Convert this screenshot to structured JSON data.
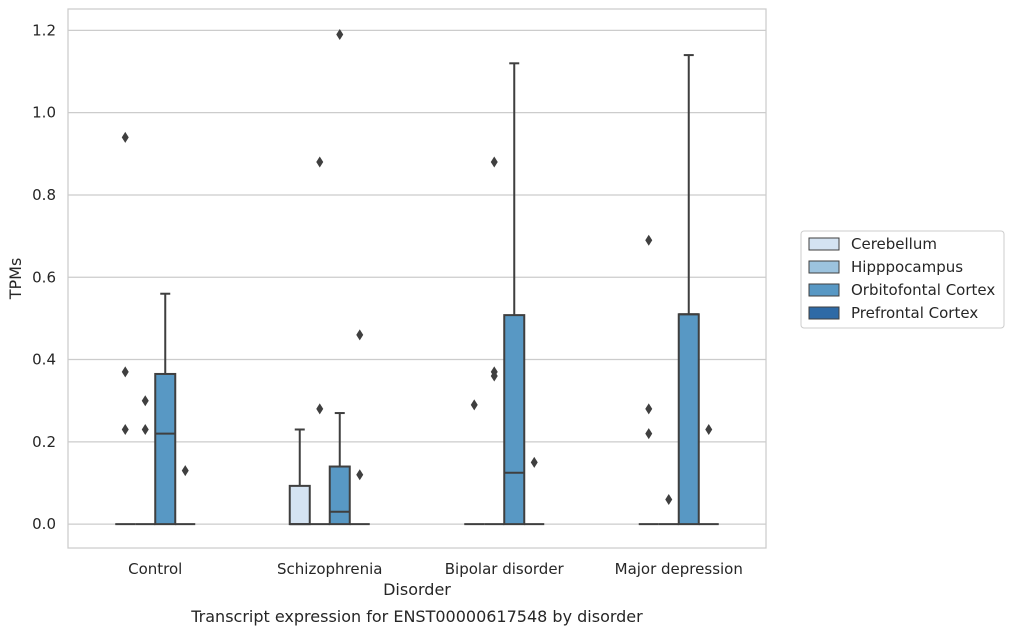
{
  "chart_data": {
    "type": "box",
    "caption": "Transcript expression for ENST00000617548 by disorder",
    "xlabel": "Disorder",
    "ylabel": "TPMs",
    "ylim": [
      -0.058,
      1.252
    ],
    "yticks": [
      0.0,
      0.2,
      0.4,
      0.6,
      0.8,
      1.0,
      1.2
    ],
    "ytick_labels": [
      "0.0",
      "0.2",
      "0.4",
      "0.6",
      "0.8",
      "1.0",
      "1.2"
    ],
    "grid": "horizontal",
    "legend_position": "right",
    "categories": [
      "Control",
      "Schizophrenia",
      "Bipolar disorder",
      "Major depression"
    ],
    "series": [
      {
        "name": "Cerebellum",
        "color": "#d4e3f2",
        "boxes": [
          {
            "q1": 0,
            "median": 0,
            "q3": 0,
            "whisker_low": 0,
            "whisker_high": 0,
            "outliers": [
              0.94,
              0.37,
              0.23
            ]
          },
          {
            "q1": 0,
            "median": 0,
            "q3": 0.093,
            "whisker_low": 0,
            "whisker_high": 0.23,
            "outliers": []
          },
          {
            "q1": 0,
            "median": 0,
            "q3": 0,
            "whisker_low": 0,
            "whisker_high": 0,
            "outliers": [
              0.29
            ]
          },
          {
            "q1": 0,
            "median": 0,
            "q3": 0,
            "whisker_low": 0,
            "whisker_high": 0,
            "outliers": [
              0.69,
              0.28,
              0.22
            ]
          }
        ]
      },
      {
        "name": "Hipppocampus",
        "color": "#9cc3de",
        "boxes": [
          {
            "q1": 0,
            "median": 0,
            "q3": 0,
            "whisker_low": 0,
            "whisker_high": 0,
            "outliers": [
              0.3,
              0.23
            ]
          },
          {
            "q1": 0,
            "median": 0,
            "q3": 0,
            "whisker_low": 0,
            "whisker_high": 0,
            "outliers": [
              0.88,
              0.28
            ]
          },
          {
            "q1": 0,
            "median": 0,
            "q3": 0,
            "whisker_low": 0,
            "whisker_high": 0,
            "outliers": [
              0.88,
              0.37,
              0.36
            ]
          },
          {
            "q1": 0,
            "median": 0,
            "q3": 0,
            "whisker_low": 0,
            "whisker_high": 0,
            "outliers": [
              0.06
            ]
          }
        ]
      },
      {
        "name": "Orbitofontal Cortex",
        "color": "#5898c4",
        "boxes": [
          {
            "q1": 0,
            "median": 0.22,
            "q3": 0.365,
            "whisker_low": 0,
            "whisker_high": 0.56,
            "outliers": []
          },
          {
            "q1": 0,
            "median": 0.03,
            "q3": 0.14,
            "whisker_low": 0,
            "whisker_high": 0.27,
            "outliers": [
              1.19
            ]
          },
          {
            "q1": 0,
            "median": 0.125,
            "q3": 0.508,
            "whisker_low": 0,
            "whisker_high": 1.12,
            "outliers": []
          },
          {
            "q1": 0,
            "median": 0.51,
            "q3": 0.51,
            "whisker_low": 0,
            "whisker_high": 1.14,
            "outliers": []
          }
        ]
      },
      {
        "name": "Prefrontal Cortex",
        "color": "#2e6aa6",
        "boxes": [
          {
            "q1": 0,
            "median": 0,
            "q3": 0,
            "whisker_low": 0,
            "whisker_high": 0,
            "outliers": [
              0.13
            ]
          },
          {
            "q1": 0,
            "median": 0,
            "q3": 0,
            "whisker_low": 0,
            "whisker_high": 0,
            "outliers": [
              0.46,
              0.12
            ]
          },
          {
            "q1": 0,
            "median": 0,
            "q3": 0,
            "whisker_low": 0,
            "whisker_high": 0,
            "outliers": [
              0.15
            ]
          },
          {
            "q1": 0,
            "median": 0,
            "q3": 0,
            "whisker_low": 0,
            "whisker_high": 0,
            "outliers": [
              0.23
            ]
          }
        ]
      }
    ]
  }
}
